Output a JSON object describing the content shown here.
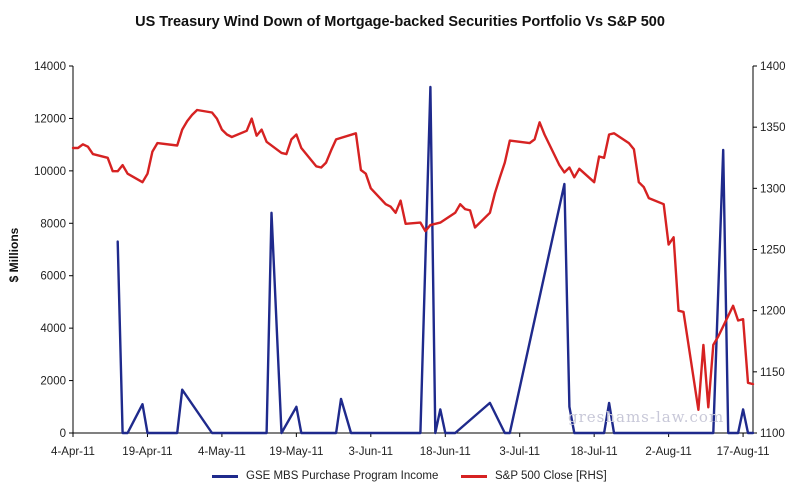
{
  "chart_data": {
    "type": "line",
    "title": "US Treasury Wind Down of Mortgage-backed Securities Portfolio Vs S&P 500",
    "ylabel": "$ Millions",
    "ylabel_right": "",
    "xlabel": "",
    "x_tick_labels": [
      "4-Apr-11",
      "19-Apr-11",
      "4-May-11",
      "19-May-11",
      "3-Jun-11",
      "18-Jun-11",
      "3-Jul-11",
      "18-Jul-11",
      "2-Aug-11",
      "17-Aug-11"
    ],
    "x_range": [
      "2011-04-04",
      "2011-08-19"
    ],
    "y_left_ticks": [
      "0",
      "2000",
      "4000",
      "6000",
      "8000",
      "10000",
      "12000",
      "14000"
    ],
    "y_left_range": [
      0,
      14000
    ],
    "y_right_ticks": [
      "1100",
      "1150",
      "1200",
      "1250",
      "1300",
      "1350",
      "1400"
    ],
    "y_right_range": [
      1100,
      1400
    ],
    "grid": false,
    "legend_position": "bottom",
    "series": [
      {
        "name": "GSE MBS Purchase Program Income",
        "axis": "left",
        "color": "#1f2a8c",
        "x": [
          "2011-04-13",
          "2011-04-14",
          "2011-04-15",
          "2011-04-18",
          "2011-04-19",
          "2011-04-25",
          "2011-04-26",
          "2011-05-02",
          "2011-05-03",
          "2011-05-13",
          "2011-05-14",
          "2011-05-16",
          "2011-05-19",
          "2011-05-20",
          "2011-05-27",
          "2011-05-28",
          "2011-05-30",
          "2011-06-13",
          "2011-06-15",
          "2011-06-16",
          "2011-06-17",
          "2011-06-18",
          "2011-06-20",
          "2011-06-27",
          "2011-06-30",
          "2011-07-01",
          "2011-07-12",
          "2011-07-13",
          "2011-07-14",
          "2011-07-20",
          "2011-07-21",
          "2011-07-22",
          "2011-07-28",
          "2011-08-01",
          "2011-08-11",
          "2011-08-13",
          "2011-08-14",
          "2011-08-16",
          "2011-08-17",
          "2011-08-18",
          "2011-08-19"
        ],
        "values": [
          7300,
          0,
          0,
          1100,
          0,
          0,
          1650,
          0,
          0,
          0,
          8400,
          0,
          1000,
          0,
          0,
          1300,
          0,
          0,
          13200,
          0,
          900,
          0,
          0,
          1150,
          0,
          0,
          9500,
          1000,
          0,
          0,
          1150,
          0,
          0,
          0,
          0,
          10800,
          0,
          0,
          900,
          0,
          0
        ]
      },
      {
        "name": "S&P 500 Close [RHS]",
        "axis": "right",
        "color": "#d62222",
        "x": [
          "2011-04-04",
          "2011-04-05",
          "2011-04-06",
          "2011-04-07",
          "2011-04-08",
          "2011-04-11",
          "2011-04-12",
          "2011-04-13",
          "2011-04-14",
          "2011-04-15",
          "2011-04-18",
          "2011-04-19",
          "2011-04-20",
          "2011-04-21",
          "2011-04-25",
          "2011-04-26",
          "2011-04-27",
          "2011-04-28",
          "2011-04-29",
          "2011-05-02",
          "2011-05-03",
          "2011-05-04",
          "2011-05-05",
          "2011-05-06",
          "2011-05-09",
          "2011-05-10",
          "2011-05-11",
          "2011-05-12",
          "2011-05-13",
          "2011-05-16",
          "2011-05-17",
          "2011-05-18",
          "2011-05-19",
          "2011-05-20",
          "2011-05-23",
          "2011-05-24",
          "2011-05-25",
          "2011-05-26",
          "2011-05-27",
          "2011-05-31",
          "2011-06-01",
          "2011-06-02",
          "2011-06-03",
          "2011-06-06",
          "2011-06-07",
          "2011-06-08",
          "2011-06-09",
          "2011-06-10",
          "2011-06-13",
          "2011-06-14",
          "2011-06-15",
          "2011-06-16",
          "2011-06-17",
          "2011-06-20",
          "2011-06-21",
          "2011-06-22",
          "2011-06-23",
          "2011-06-24",
          "2011-06-27",
          "2011-06-28",
          "2011-06-29",
          "2011-06-30",
          "2011-07-01",
          "2011-07-05",
          "2011-07-06",
          "2011-07-07",
          "2011-07-08",
          "2011-07-11",
          "2011-07-12",
          "2011-07-13",
          "2011-07-14",
          "2011-07-15",
          "2011-07-18",
          "2011-07-19",
          "2011-07-20",
          "2011-07-21",
          "2011-07-22",
          "2011-07-25",
          "2011-07-26",
          "2011-07-27",
          "2011-07-28",
          "2011-07-29",
          "2011-08-01",
          "2011-08-02",
          "2011-08-03",
          "2011-08-04",
          "2011-08-05",
          "2011-08-08",
          "2011-08-09",
          "2011-08-10",
          "2011-08-11",
          "2011-08-12",
          "2011-08-15",
          "2011-08-16",
          "2011-08-17",
          "2011-08-18",
          "2011-08-19"
        ],
        "values": [
          1333,
          1333,
          1336,
          1334,
          1328,
          1325,
          1314,
          1314,
          1319,
          1312,
          1305,
          1312,
          1330,
          1337,
          1335,
          1348,
          1355,
          1360,
          1364,
          1362,
          1357,
          1348,
          1344,
          1342,
          1347,
          1357,
          1343,
          1348,
          1338,
          1329,
          1328,
          1340,
          1344,
          1333,
          1318,
          1317,
          1321,
          1331,
          1340,
          1345,
          1315,
          1312,
          1300,
          1287,
          1285,
          1280,
          1290,
          1271,
          1272,
          1265,
          1270,
          1271,
          1272,
          1280,
          1287,
          1283,
          1282,
          1268,
          1280,
          1296,
          1309,
          1321,
          1339,
          1337,
          1340,
          1354,
          1344,
          1319,
          1313,
          1317,
          1309,
          1316,
          1305,
          1326,
          1325,
          1344,
          1345,
          1337,
          1332,
          1305,
          1301,
          1292,
          1287,
          1254,
          1260,
          1200,
          1199,
          1119,
          1172,
          1121,
          1172,
          1179,
          1204,
          1192,
          1193,
          1141,
          1140
        ]
      }
    ]
  },
  "watermark": "greshams-law.com"
}
